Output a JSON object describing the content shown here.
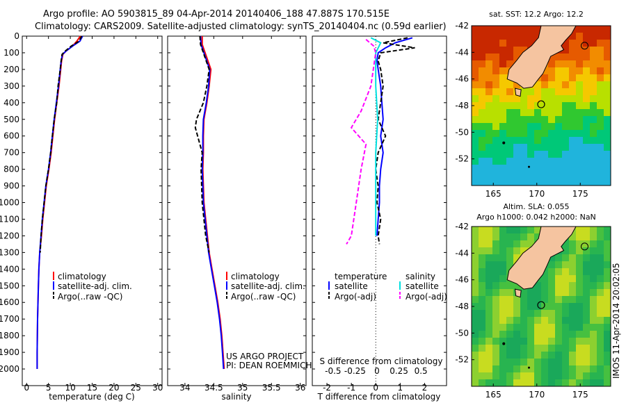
{
  "title": {
    "line1": "Argo profile: AO 5903815_89 04-Apr-2014 20140406_188 47.887S 170.515E",
    "line2": "Climatology: CARS2009. Satellite-adjusted climatology: synTS_20140404.nc (0.59d earlier)"
  },
  "credit": {
    "line1": "US ARGO PROJECT",
    "line2": "PI: DEAN ROEMMICH",
    "side": "IMOS 11-Apr-2014 20:02:05"
  },
  "colors": {
    "climatology": "#ff0000",
    "satellite": "#0000ff",
    "argo": "#000000",
    "sat_salinity": "#00e0e0",
    "argo_salinity": "#ff00ff",
    "land": "#f5c4a0"
  },
  "chart_data": [
    {
      "type": "line",
      "id": "temperature",
      "xlabel": "temperature (deg C)",
      "ylabel": "",
      "xlim": [
        -1,
        31
      ],
      "ylim": [
        2100,
        0
      ],
      "xticks": [
        0,
        5,
        10,
        15,
        20,
        25,
        30
      ],
      "yticks": [
        0,
        100,
        200,
        300,
        400,
        500,
        600,
        700,
        800,
        900,
        1000,
        1100,
        1200,
        1300,
        1400,
        1500,
        1600,
        1700,
        1800,
        1900,
        2000
      ],
      "legend": [
        "climatology",
        "satellite-adj. clim.",
        "Argo(..raw -QC)"
      ],
      "series": [
        {
          "name": "climatology",
          "style": "solid",
          "color": "#ff0000",
          "points": [
            [
              12.3,
              0
            ],
            [
              11.5,
              30
            ],
            [
              10.5,
              60
            ],
            [
              9.0,
              90
            ],
            [
              8.3,
              110
            ],
            [
              8.0,
              150
            ],
            [
              7.8,
              200
            ],
            [
              7.4,
              300
            ],
            [
              6.9,
              400
            ],
            [
              6.4,
              500
            ],
            [
              6.0,
              600
            ],
            [
              5.6,
              700
            ],
            [
              5.1,
              800
            ],
            [
              4.5,
              900
            ],
            [
              4.1,
              1000
            ],
            [
              3.7,
              1100
            ],
            [
              3.4,
              1200
            ],
            [
              3.0,
              1300
            ],
            [
              2.8,
              1400
            ],
            [
              2.7,
              1500
            ],
            [
              2.6,
              1600
            ],
            [
              2.5,
              1700
            ],
            [
              2.45,
              1800
            ],
            [
              2.4,
              1900
            ],
            [
              2.4,
              2000
            ]
          ]
        },
        {
          "name": "satellite-adj. clim.",
          "style": "solid",
          "color": "#0000ff",
          "points": [
            [
              12.8,
              0
            ],
            [
              12.2,
              30
            ],
            [
              10.5,
              60
            ],
            [
              9.0,
              90
            ],
            [
              8.2,
              110
            ],
            [
              7.9,
              150
            ],
            [
              7.7,
              200
            ],
            [
              7.3,
              300
            ],
            [
              6.8,
              400
            ],
            [
              6.3,
              500
            ],
            [
              5.9,
              600
            ],
            [
              5.5,
              700
            ],
            [
              5.0,
              800
            ],
            [
              4.4,
              900
            ],
            [
              4.0,
              1000
            ],
            [
              3.6,
              1100
            ],
            [
              3.3,
              1200
            ],
            [
              3.0,
              1300
            ],
            [
              2.8,
              1400
            ],
            [
              2.7,
              1500
            ],
            [
              2.6,
              1600
            ],
            [
              2.5,
              1700
            ],
            [
              2.45,
              1800
            ],
            [
              2.4,
              1900
            ],
            [
              2.4,
              2000
            ]
          ]
        },
        {
          "name": "Argo(..raw -QC)",
          "style": "dashed",
          "color": "#000000",
          "points": [
            [
              12.6,
              0
            ],
            [
              12.0,
              30
            ],
            [
              10.2,
              60
            ],
            [
              8.8,
              90
            ],
            [
              8.1,
              110
            ],
            [
              7.9,
              150
            ],
            [
              7.7,
              200
            ],
            [
              7.2,
              300
            ],
            [
              6.9,
              400
            ],
            [
              6.3,
              500
            ],
            [
              5.9,
              600
            ],
            [
              5.5,
              700
            ],
            [
              5.0,
              800
            ],
            [
              4.4,
              900
            ],
            [
              4.0,
              1000
            ],
            [
              3.6,
              1100
            ],
            [
              3.3,
              1200
            ],
            [
              3.1,
              1300
            ]
          ]
        }
      ]
    },
    {
      "type": "line",
      "id": "salinity",
      "xlabel": "salinity",
      "ylabel": "",
      "xlim": [
        33.7,
        36.1
      ],
      "ylim": [
        2100,
        0
      ],
      "xticks": [
        34,
        34.5,
        35,
        35.5,
        36
      ],
      "legend": [
        "climatology",
        "satellite-adj. clim.",
        "Argo(..raw -QC)"
      ],
      "series": [
        {
          "name": "climatology",
          "style": "solid",
          "color": "#ff0000",
          "points": [
            [
              34.3,
              0
            ],
            [
              34.3,
              50
            ],
            [
              34.35,
              100
            ],
            [
              34.45,
              200
            ],
            [
              34.42,
              300
            ],
            [
              34.38,
              400
            ],
            [
              34.33,
              500
            ],
            [
              34.32,
              600
            ],
            [
              34.32,
              700
            ],
            [
              34.31,
              800
            ],
            [
              34.32,
              900
            ],
            [
              34.33,
              1000
            ],
            [
              34.36,
              1100
            ],
            [
              34.39,
              1200
            ],
            [
              34.42,
              1300
            ],
            [
              34.47,
              1400
            ],
            [
              34.52,
              1500
            ],
            [
              34.57,
              1600
            ],
            [
              34.61,
              1700
            ],
            [
              34.64,
              1800
            ],
            [
              34.66,
              1900
            ],
            [
              34.68,
              2000
            ]
          ]
        },
        {
          "name": "satellite-adj. clim.",
          "style": "solid",
          "color": "#0000ff",
          "points": [
            [
              34.27,
              0
            ],
            [
              34.28,
              50
            ],
            [
              34.33,
              100
            ],
            [
              34.43,
              200
            ],
            [
              34.41,
              300
            ],
            [
              34.37,
              400
            ],
            [
              34.32,
              500
            ],
            [
              34.31,
              600
            ],
            [
              34.31,
              700
            ],
            [
              34.3,
              800
            ],
            [
              34.31,
              900
            ],
            [
              34.32,
              1000
            ],
            [
              34.35,
              1100
            ],
            [
              34.38,
              1200
            ],
            [
              34.41,
              1300
            ],
            [
              34.46,
              1400
            ],
            [
              34.51,
              1500
            ],
            [
              34.56,
              1600
            ],
            [
              34.6,
              1700
            ],
            [
              34.63,
              1800
            ],
            [
              34.65,
              1900
            ],
            [
              34.67,
              2000
            ]
          ]
        },
        {
          "name": "Argo(..raw -QC)",
          "style": "dashed",
          "color": "#000000",
          "points": [
            [
              34.26,
              0
            ],
            [
              34.27,
              50
            ],
            [
              34.32,
              100
            ],
            [
              34.42,
              200
            ],
            [
              34.38,
              300
            ],
            [
              34.32,
              400
            ],
            [
              34.2,
              500
            ],
            [
              34.18,
              550
            ],
            [
              34.22,
              600
            ],
            [
              34.3,
              700
            ],
            [
              34.28,
              800
            ],
            [
              34.29,
              900
            ],
            [
              34.3,
              1000
            ],
            [
              34.33,
              1100
            ],
            [
              34.36,
              1200
            ],
            [
              34.42,
              1300
            ]
          ]
        }
      ]
    },
    {
      "type": "line",
      "id": "differences",
      "xlabel": "T difference from climatology",
      "xlabel_top": "S difference from climatology",
      "ylabel": "",
      "xlim": [
        -2.6,
        2.9
      ],
      "ylim": [
        2100,
        0
      ],
      "xticks": [
        -2,
        -1,
        0,
        1,
        2
      ],
      "xticks_top": [
        "-0.5",
        "-0.25",
        "0",
        "0.25",
        "0.5"
      ],
      "legend": {
        "temperature_title": "temperature",
        "salinity_title": "salinity",
        "temperature_items": [
          "satellite",
          "Argo(-adj)"
        ],
        "salinity_items": [
          "satellite",
          "Argo(-adj)"
        ]
      },
      "series": [
        {
          "name": "satellite",
          "group": "temperature",
          "style": "solid",
          "color": "#0000ff",
          "points": [
            [
              1.5,
              10
            ],
            [
              0.8,
              40
            ],
            [
              0.4,
              70
            ],
            [
              0.1,
              100
            ],
            [
              0.05,
              150
            ],
            [
              0.1,
              200
            ],
            [
              0.2,
              300
            ],
            [
              0.25,
              400
            ],
            [
              0.3,
              500
            ],
            [
              0.2,
              600
            ],
            [
              0.3,
              700
            ],
            [
              0.2,
              800
            ],
            [
              0.15,
              900
            ],
            [
              0.15,
              1000
            ],
            [
              0.1,
              1100
            ],
            [
              0.05,
              1200
            ]
          ]
        },
        {
          "name": "Argo(-adj)",
          "group": "temperature",
          "style": "dashed",
          "color": "#000000",
          "points": [
            [
              1.3,
              10
            ],
            [
              0.3,
              40
            ],
            [
              1.6,
              70
            ],
            [
              0.2,
              100
            ],
            [
              0.1,
              150
            ],
            [
              0.2,
              200
            ],
            [
              0.3,
              300
            ],
            [
              0.2,
              400
            ],
            [
              0.1,
              500
            ],
            [
              0.4,
              600
            ],
            [
              0.1,
              700
            ],
            [
              0.0,
              800
            ],
            [
              0.1,
              900
            ],
            [
              0.05,
              1000
            ],
            [
              0.2,
              1100
            ],
            [
              0.1,
              1200
            ],
            [
              0.15,
              1250
            ]
          ]
        },
        {
          "name": "satellite",
          "group": "salinity",
          "style": "solid",
          "color": "#00e0e0",
          "points": [
            [
              -0.05,
              10
            ],
            [
              0.05,
              40
            ],
            [
              0.0,
              100
            ],
            [
              0.0,
              300
            ],
            [
              0.02,
              500
            ],
            [
              0.0,
              700
            ],
            [
              0.0,
              1000
            ],
            [
              0.0,
              1200
            ]
          ]
        },
        {
          "name": "Argo(-adj)",
          "group": "salinity",
          "style": "dashed",
          "color": "#ff00ff",
          "points": [
            [
              -0.1,
              20
            ],
            [
              -0.02,
              60
            ],
            [
              0.0,
              100
            ],
            [
              -0.05,
              300
            ],
            [
              -0.15,
              450
            ],
            [
              -0.25,
              550
            ],
            [
              -0.1,
              650
            ],
            [
              -0.15,
              800
            ],
            [
              -0.2,
              1000
            ],
            [
              -0.25,
              1200
            ],
            [
              -0.3,
              1250
            ]
          ]
        }
      ]
    },
    {
      "type": "heatmap",
      "id": "sst_map",
      "title": "sat. SST: 12.2 Argo: 12.2",
      "xticks": [
        165,
        170,
        175
      ],
      "yticks": [
        -42,
        -44,
        -46,
        -48,
        -50,
        -52
      ],
      "xlim": [
        162.5,
        178.5
      ],
      "ylim": [
        -54,
        -42
      ],
      "argo_position": [
        170.5,
        -47.9
      ]
    },
    {
      "type": "heatmap",
      "id": "sla_map",
      "title_line1": "Altim. SLA: 0.055",
      "title_line2": "Argo h1000: 0.042 h2000: NaN",
      "xticks": [
        165,
        170,
        175
      ],
      "yticks": [
        -42,
        -44,
        -46,
        -48,
        -50,
        -52
      ],
      "xlim": [
        162.5,
        178.5
      ],
      "ylim": [
        -54,
        -42
      ],
      "argo_position": [
        170.5,
        -47.9
      ]
    }
  ]
}
